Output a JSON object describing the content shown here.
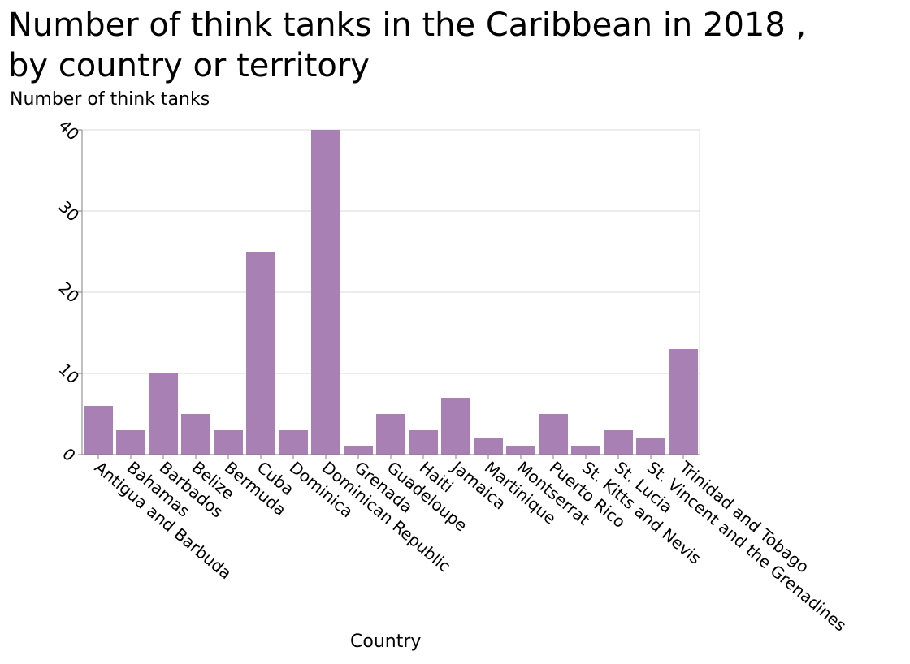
{
  "chart_data": {
    "type": "bar",
    "title": "Number of think tanks in the Caribbean in 2018 , by country or territory",
    "xlabel": "Country",
    "ylabel": "Number of think tanks",
    "categories": [
      "Antigua and Barbuda",
      "Bahamas",
      "Barbados",
      "Belize",
      "Bermuda",
      "Cuba",
      "Dominica",
      "Dominican Republic",
      "Grenada",
      "Guadeloupe",
      "Haiti",
      "Jamaica",
      "Martinique",
      "Montserrat",
      "Puerto Rico",
      "St. Kitts and Nevis",
      "St. Lucia",
      "St. Vincent and the Grenadines",
      "Trinidad and Tobago"
    ],
    "values": [
      6,
      3,
      10,
      5,
      3,
      25,
      3,
      40,
      1,
      5,
      3,
      7,
      2,
      1,
      5,
      1,
      3,
      2,
      13
    ],
    "ylim": [
      0,
      40
    ],
    "yticks": [
      "0",
      "10",
      "20",
      "30",
      "40"
    ],
    "grid": true,
    "bar_color": "#a880b4",
    "grid_color": "#d9d9d9",
    "axis_color": "#7f7f7f"
  }
}
